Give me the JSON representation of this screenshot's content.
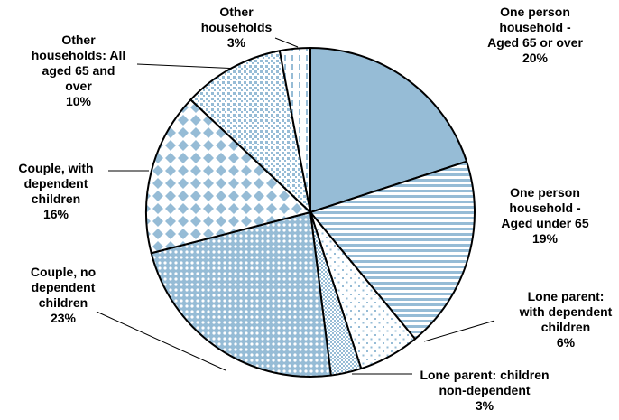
{
  "chart_data": {
    "type": "pie",
    "title": "",
    "start": "12 o'clock",
    "direction": "clockwise",
    "legend": "none",
    "slices": [
      {
        "label": [
          "One person",
          "household -",
          "Aged 65 or over",
          "20%"
        ],
        "value": 20,
        "pattern": "solid"
      },
      {
        "label": [
          "One person",
          "household -",
          "Aged under 65",
          "19%"
        ],
        "value": 19,
        "pattern": "horizontal-stripes"
      },
      {
        "label": [
          "Lone parent:",
          "with dependent",
          "children",
          "6%"
        ],
        "value": 6,
        "pattern": "sparse-dots"
      },
      {
        "label": [
          "Lone parent: children",
          "non-dependent",
          "3%"
        ],
        "value": 3,
        "pattern": "crosshatch-fine"
      },
      {
        "label": [
          "Couple, no",
          "dependent",
          "children",
          "23%"
        ],
        "value": 23,
        "pattern": "dotted-grid"
      },
      {
        "label": [
          "Couple, with",
          "dependent",
          "children",
          "16%"
        ],
        "value": 16,
        "pattern": "diamonds"
      },
      {
        "label": [
          "Other",
          "households: All",
          "aged 65 and",
          "over",
          "10%"
        ],
        "value": 10,
        "pattern": "small-checks"
      },
      {
        "label": [
          "Other",
          "households",
          "3%"
        ],
        "value": 3,
        "pattern": "vertical-dashes"
      }
    ],
    "colors": {
      "fill": "#96bcd6",
      "light": "#ffffff",
      "edge": "#000000",
      "leader": "#000000"
    }
  }
}
